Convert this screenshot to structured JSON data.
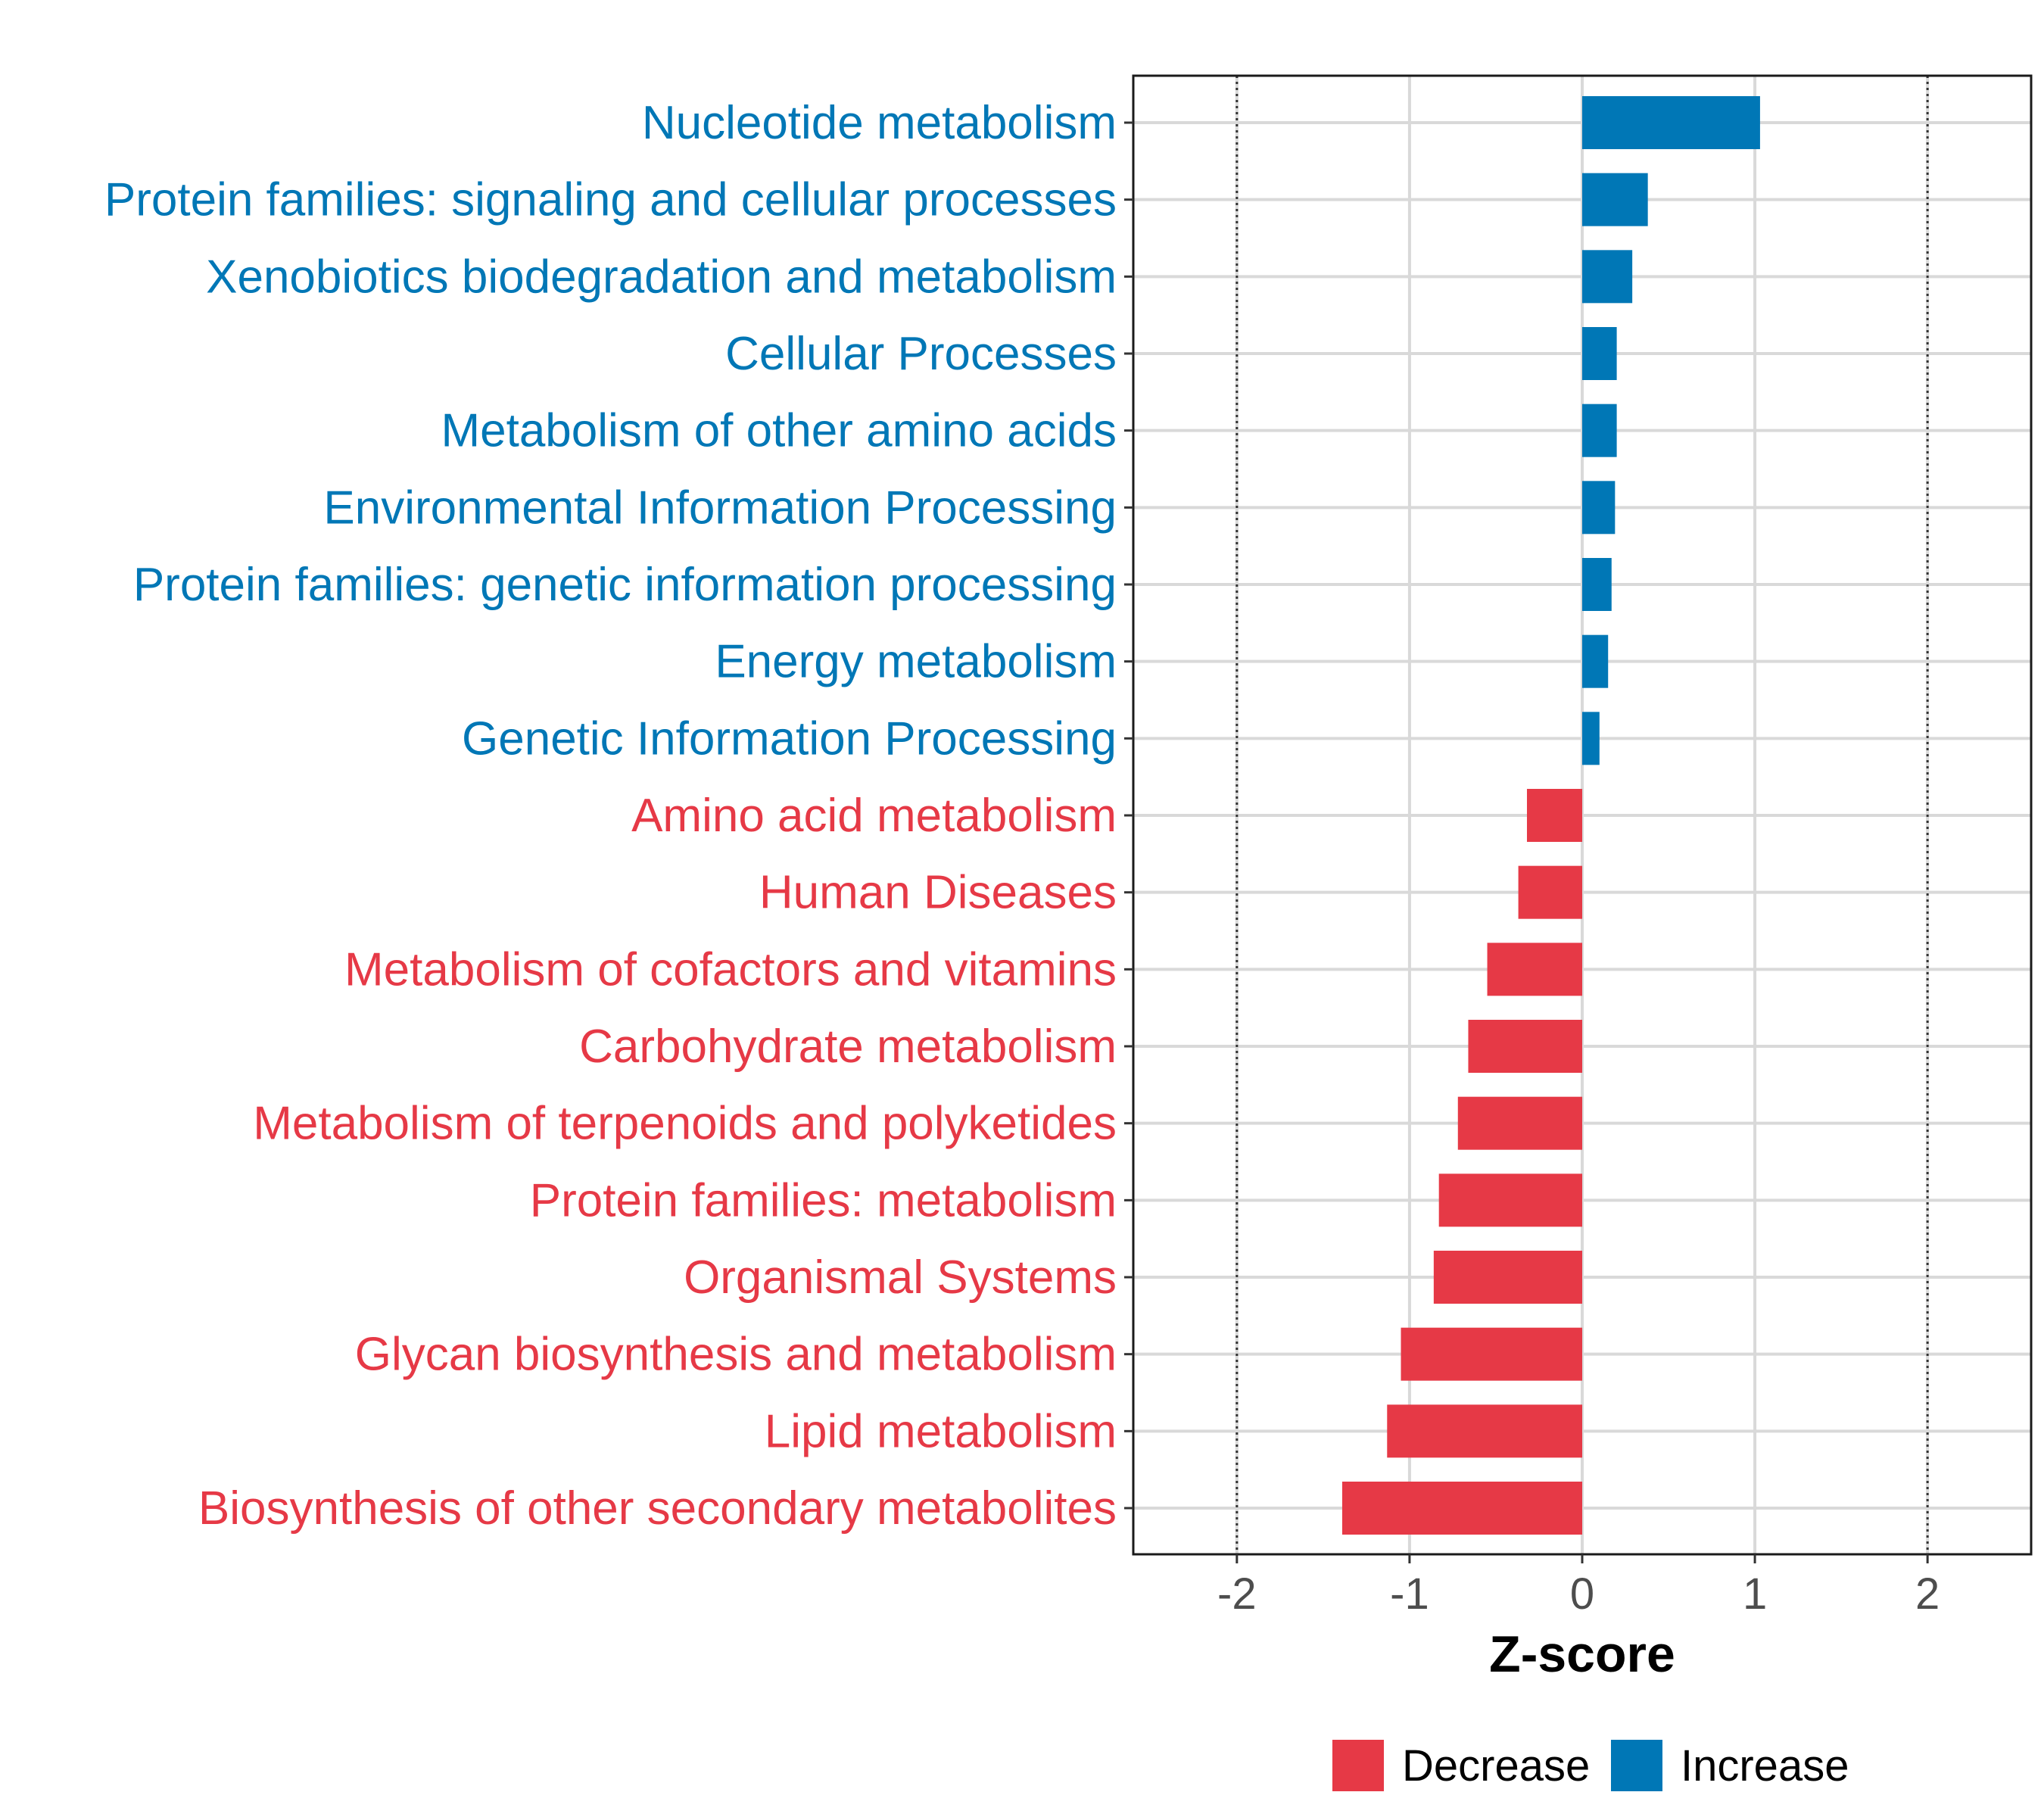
{
  "chart_data": {
    "type": "bar",
    "orientation": "horizontal",
    "title": "",
    "xlabel": "Z-score",
    "ylabel": "",
    "xlim": [
      -2.6,
      2.6
    ],
    "xticks": [
      -2,
      -1,
      0,
      1,
      2
    ],
    "xtick_labels": [
      "-2",
      "-1",
      "0",
      "1",
      "2"
    ],
    "reference_lines": [
      -2,
      2
    ],
    "grid": true,
    "categories": [
      "Nucleotide metabolism",
      "Protein families: signaling and cellular processes",
      "Xenobiotics biodegradation and metabolism",
      "Cellular Processes",
      "Metabolism of other amino acids",
      "Environmental Information Processing",
      "Protein families: genetic information processing",
      "Energy metabolism",
      "Genetic Information Processing",
      "Amino acid metabolism",
      "Human Diseases",
      "Metabolism of cofactors and vitamins",
      "Carbohydrate metabolism",
      "Metabolism of terpenoids and polyketides",
      "Protein families: metabolism",
      "Organismal Systems",
      "Glycan biosynthesis and metabolism",
      "Lipid metabolism",
      "Biosynthesis of other secondary metabolites"
    ],
    "values": [
      1.03,
      0.38,
      0.29,
      0.2,
      0.2,
      0.19,
      0.17,
      0.15,
      0.1,
      -0.32,
      -0.37,
      -0.55,
      -0.66,
      -0.72,
      -0.83,
      -0.86,
      -1.05,
      -1.13,
      -1.39
    ],
    "groups": [
      "Increase",
      "Increase",
      "Increase",
      "Increase",
      "Increase",
      "Increase",
      "Increase",
      "Increase",
      "Increase",
      "Decrease",
      "Decrease",
      "Decrease",
      "Decrease",
      "Decrease",
      "Decrease",
      "Decrease",
      "Decrease",
      "Decrease",
      "Decrease"
    ],
    "legend": {
      "position": "bottom",
      "entries": [
        {
          "label": "Decrease",
          "color": "#e63946"
        },
        {
          "label": "Increase",
          "color": "#0077b6"
        }
      ]
    },
    "colors": {
      "Decrease": "#e63946",
      "Increase": "#0077b6"
    }
  }
}
